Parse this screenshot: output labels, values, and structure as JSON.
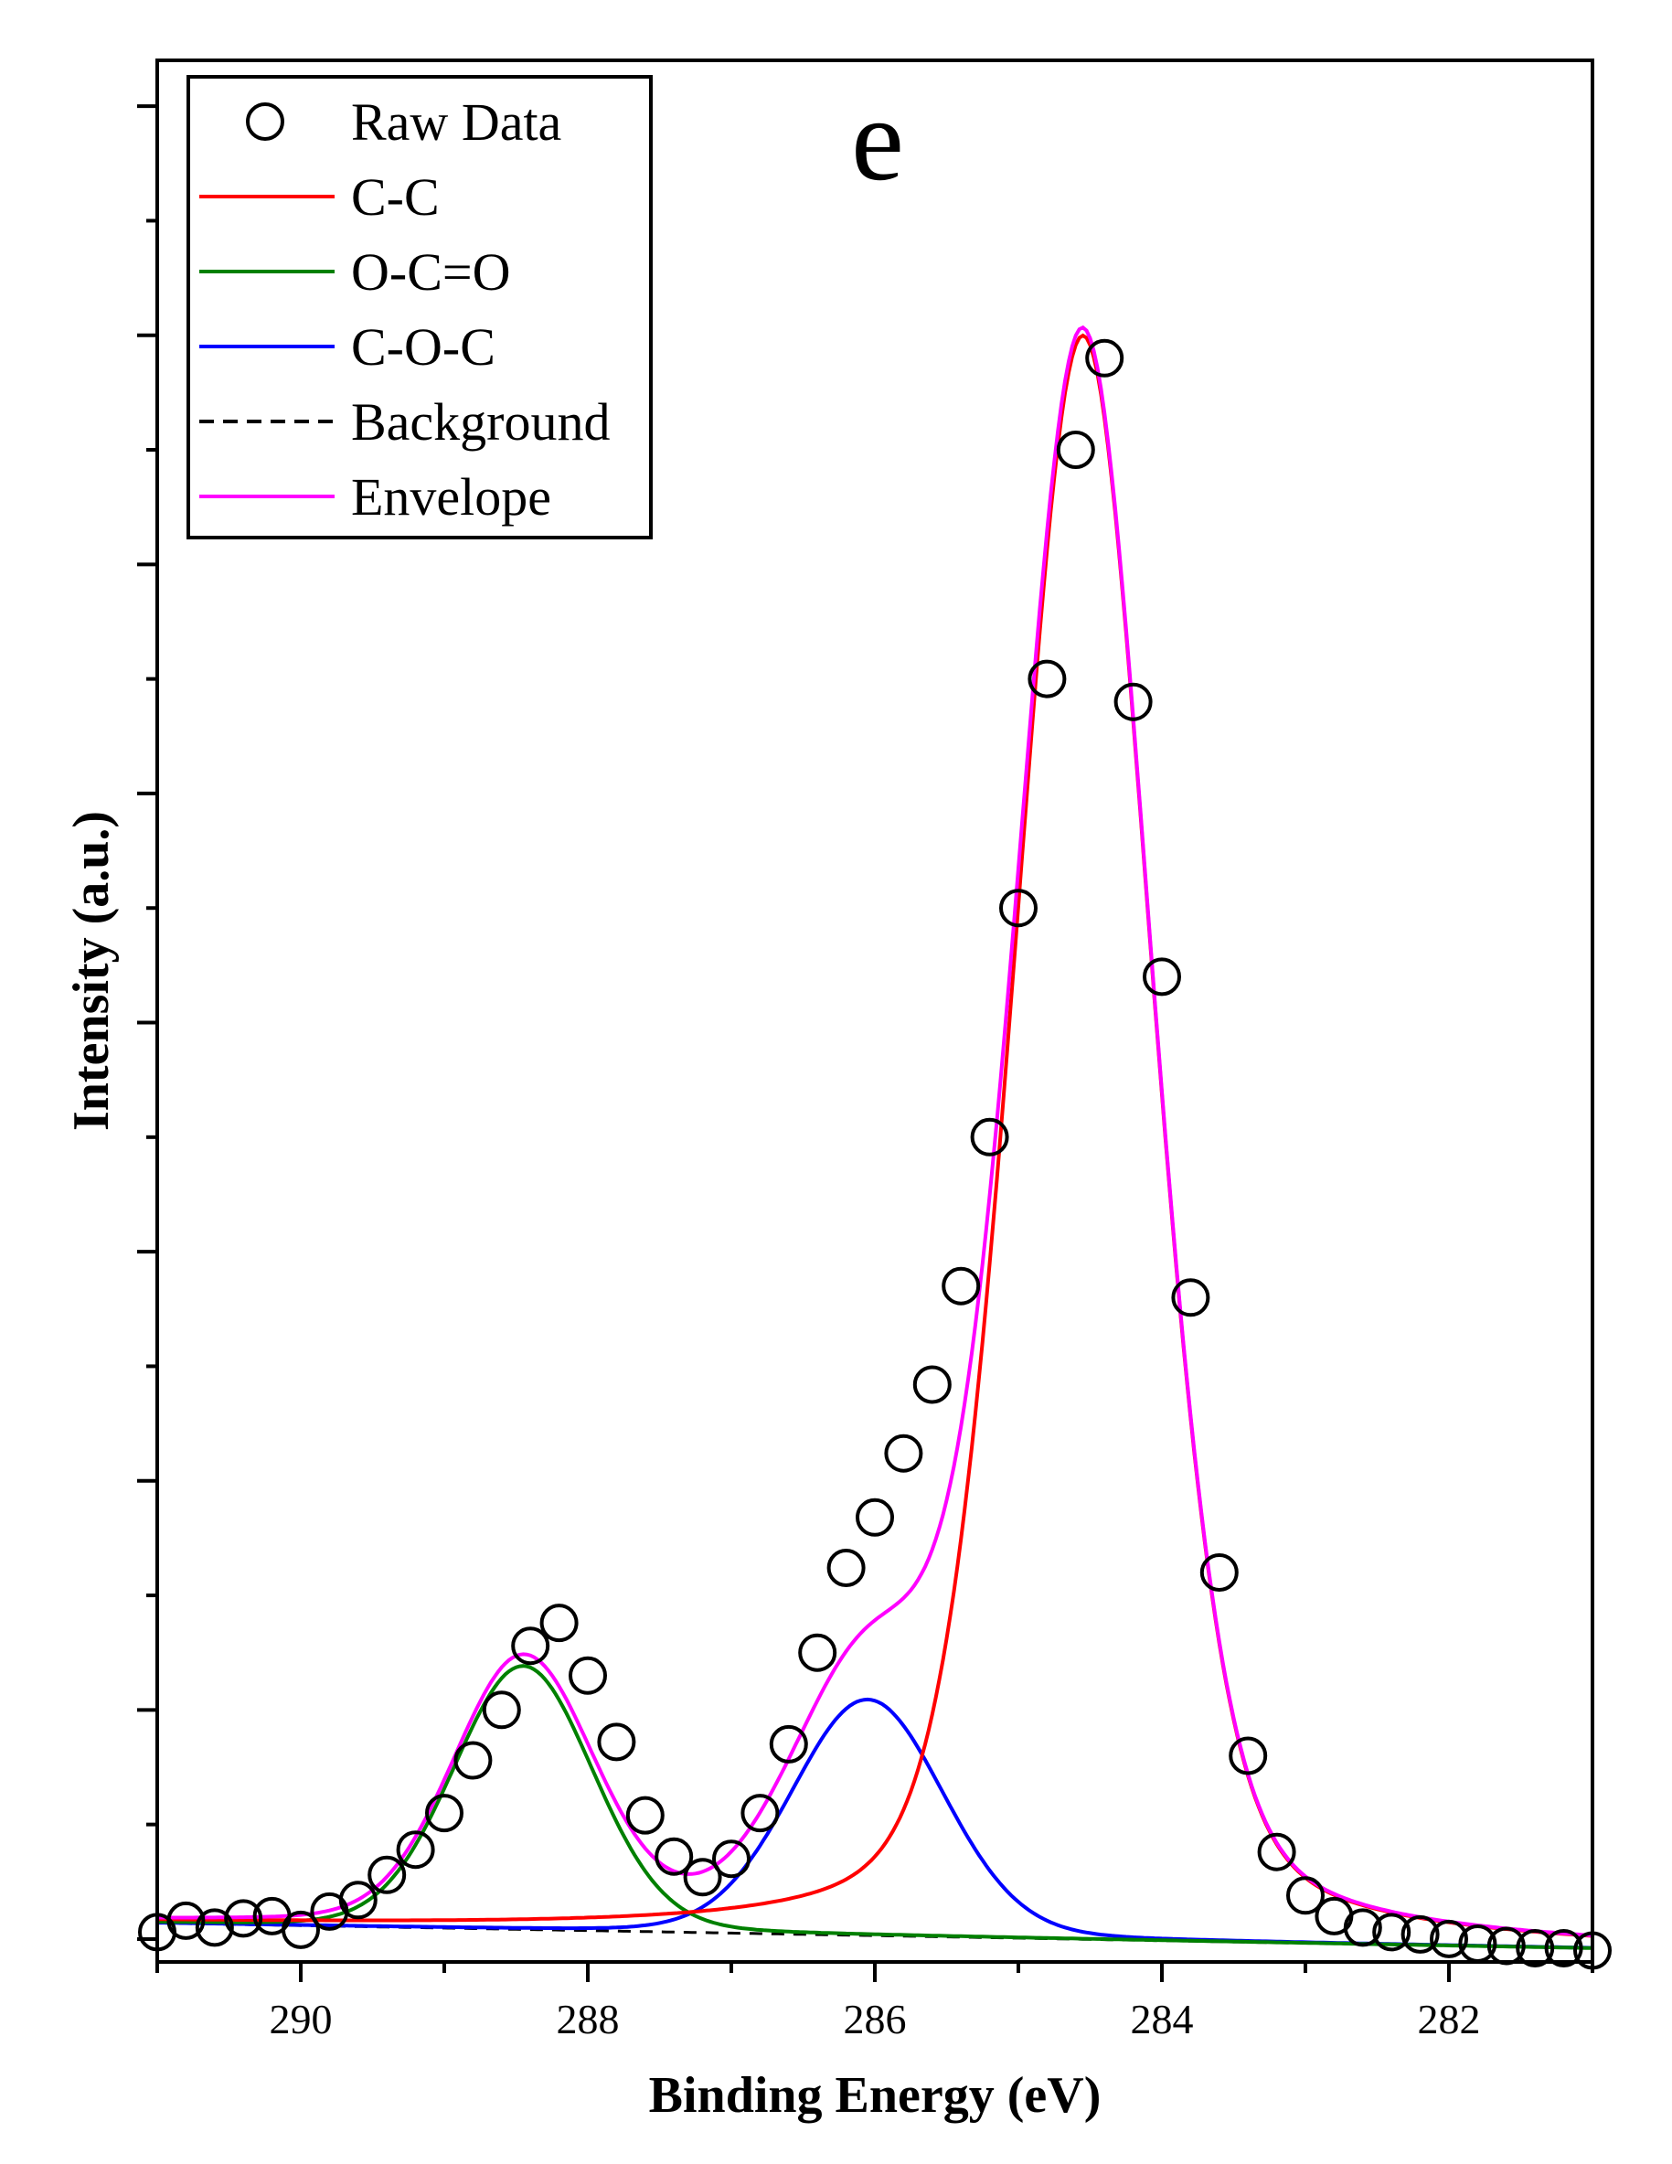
{
  "chart_data": {
    "type": "line",
    "panel_label": "e",
    "xlabel": "Binding Energy (eV)",
    "ylabel": "Intensity (a.u.)",
    "xlim": [
      291,
      281
    ],
    "ylim": [
      -0.1,
      8.2
    ],
    "x_ticks": [
      290,
      288,
      286,
      284,
      282
    ],
    "x_tick_labels": [
      "290",
      "288",
      "286",
      "284",
      "282"
    ],
    "y_tick_labels_shown": false,
    "legend_position": "top-left",
    "legend": [
      {
        "label": "Raw Data",
        "style": "circle"
      },
      {
        "label": "C-C",
        "style": "line",
        "color": "#ff0000"
      },
      {
        "label": "O-C=O",
        "style": "line",
        "color": "#008000"
      },
      {
        "label": "C-O-C",
        "style": "line",
        "color": "#0000ff"
      },
      {
        "label": "Background",
        "style": "dashed",
        "color": "#000000"
      },
      {
        "label": "Envelope",
        "style": "line",
        "color": "#ff00ff"
      }
    ],
    "background": {
      "x": [
        291,
        281
      ],
      "y": [
        0.07,
        -0.04
      ]
    },
    "components": [
      {
        "name": "C-C",
        "color": "#ff0000",
        "center": 284.55,
        "height": 7.0,
        "fwhm": 1.15,
        "gl": 0.3
      },
      {
        "name": "O-C=O",
        "color": "#008000",
        "center": 288.45,
        "height": 1.15,
        "fwhm": 1.15,
        "gl": 0.1
      },
      {
        "name": "C-O-C",
        "color": "#0000ff",
        "center": 286.05,
        "height": 1.03,
        "fwhm": 1.25,
        "gl": 0.1
      }
    ],
    "raw_data": {
      "x": [
        291.0,
        290.8,
        290.6,
        290.4,
        290.2,
        290.0,
        289.8,
        289.6,
        289.4,
        289.2,
        289.0,
        288.8,
        288.6,
        288.4,
        288.2,
        288.0,
        287.8,
        287.6,
        287.4,
        287.2,
        287.0,
        286.8,
        286.6,
        286.4,
        286.2,
        286.0,
        285.8,
        285.6,
        285.4,
        285.2,
        285.0,
        284.8,
        284.6,
        284.4,
        284.2,
        284.0,
        283.8,
        283.6,
        283.4,
        283.2,
        283.0,
        282.8,
        282.6,
        282.4,
        282.2,
        282.0,
        281.8,
        281.6,
        281.4,
        281.2,
        281.0
      ],
      "y": [
        0.03,
        0.08,
        0.05,
        0.09,
        0.1,
        0.04,
        0.12,
        0.17,
        0.28,
        0.39,
        0.55,
        0.78,
        1.0,
        1.28,
        1.38,
        1.15,
        0.86,
        0.54,
        0.36,
        0.27,
        0.35,
        0.55,
        0.85,
        1.25,
        1.62,
        1.84,
        2.12,
        2.42,
        2.85,
        3.5,
        4.5,
        5.5,
        6.5,
        6.9,
        5.4,
        4.2,
        2.8,
        1.6,
        0.8,
        0.38,
        0.19,
        0.1,
        0.05,
        0.03,
        0.02,
        0.0,
        -0.02,
        -0.03,
        -0.04,
        -0.04,
        -0.05
      ]
    }
  }
}
